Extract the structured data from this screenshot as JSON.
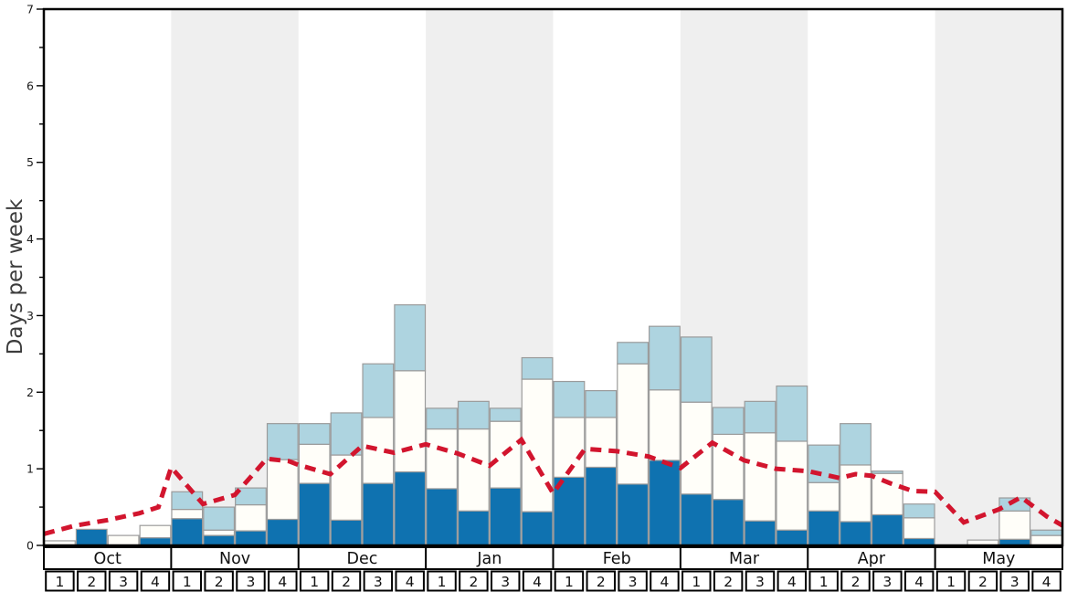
{
  "y_axis": {
    "label": "Days per week",
    "ticks": [
      "0",
      "1",
      "2",
      "3",
      "4",
      "5",
      "6",
      "7"
    ],
    "minor_step": 0.5
  },
  "months": [
    {
      "label": "Oct",
      "weeks": [
        "1",
        "2",
        "3",
        "4"
      ]
    },
    {
      "label": "Nov",
      "weeks": [
        "1",
        "2",
        "3",
        "4"
      ]
    },
    {
      "label": "Dec",
      "weeks": [
        "1",
        "2",
        "3",
        "4"
      ]
    },
    {
      "label": "Jan",
      "weeks": [
        "1",
        "2",
        "3",
        "4"
      ]
    },
    {
      "label": "Feb",
      "weeks": [
        "1",
        "2",
        "3",
        "4"
      ]
    },
    {
      "label": "Mar",
      "weeks": [
        "1",
        "2",
        "3",
        "4"
      ]
    },
    {
      "label": "Apr",
      "weeks": [
        "1",
        "2",
        "3",
        "4"
      ]
    },
    {
      "label": "May",
      "weeks": [
        "1",
        "2",
        "3",
        "4"
      ]
    }
  ],
  "colors": {
    "dark_blue": "#0f72b0",
    "bar_white": "#fffef9",
    "light_blue": "#aed4e0",
    "bar_border": "#9b9b9b",
    "red_line": "#d2152e",
    "band_gray": "#efefef",
    "axis_black": "#000000",
    "label_gray": "#3c3c3c"
  },
  "chart_data": {
    "type": "bar",
    "subtype": "stacked-bars-with-dashed-line",
    "title": "",
    "xlabel": "",
    "ylabel": "Days per week",
    "ylim": [
      0,
      7
    ],
    "grid": false,
    "legend": "none",
    "categories": [
      "Oct",
      "Nov",
      "Dec",
      "Jan",
      "Feb",
      "Mar",
      "Apr",
      "May"
    ],
    "weeks_per_month": 4,
    "alternating_month_bands": [
      1,
      3,
      5,
      7
    ],
    "series_note": "values are cumulative stack tops (days per week) for 32 weeks Oct w1 .. May w4",
    "series": [
      {
        "name": "dark-blue-bottom",
        "color": "#0f72b0",
        "cumulative_top": [
          0.0,
          0.21,
          0.0,
          0.1,
          0.35,
          0.13,
          0.19,
          0.34,
          0.81,
          0.33,
          0.81,
          0.96,
          0.74,
          0.45,
          0.75,
          0.44,
          0.89,
          1.02,
          0.8,
          1.11,
          0.67,
          0.6,
          0.32,
          0.2,
          0.45,
          0.31,
          0.4,
          0.09,
          0.0,
          0.0,
          0.08,
          0.0
        ]
      },
      {
        "name": "white-middle",
        "color": "#fffef9",
        "cumulative_top": [
          0.06,
          0.21,
          0.13,
          0.26,
          0.47,
          0.2,
          0.53,
          1.12,
          1.32,
          1.18,
          1.67,
          2.28,
          1.52,
          1.52,
          1.62,
          2.17,
          1.67,
          1.67,
          2.37,
          2.03,
          1.87,
          1.45,
          1.47,
          1.36,
          0.82,
          1.05,
          0.94,
          0.36,
          0.0,
          0.07,
          0.45,
          0.13
        ]
      },
      {
        "name": "light-blue-top",
        "color": "#aed4e0",
        "cumulative_top": [
          0.06,
          0.21,
          0.13,
          0.26,
          0.7,
          0.5,
          0.75,
          1.59,
          1.59,
          1.73,
          2.37,
          3.14,
          1.79,
          1.88,
          1.79,
          2.45,
          2.14,
          2.02,
          2.65,
          2.86,
          2.72,
          1.8,
          1.88,
          2.08,
          1.31,
          1.59,
          0.97,
          0.54,
          0.0,
          0.07,
          0.62,
          0.2
        ]
      }
    ],
    "red_dashed_line": {
      "name": "red-dashed-trend",
      "color": "#d2152e",
      "points_week_units_vs_value": [
        [
          0.0,
          0.15
        ],
        [
          1.0,
          0.26
        ],
        [
          2.0,
          0.33
        ],
        [
          3.0,
          0.42
        ],
        [
          3.6,
          0.5
        ],
        [
          4.0,
          1.02
        ],
        [
          5.0,
          0.54
        ],
        [
          6.0,
          0.66
        ],
        [
          7.0,
          1.13
        ],
        [
          7.7,
          1.1
        ],
        [
          8.0,
          1.05
        ],
        [
          9.0,
          0.93
        ],
        [
          10.0,
          1.3
        ],
        [
          11.0,
          1.21
        ],
        [
          12.0,
          1.32
        ],
        [
          13.0,
          1.2
        ],
        [
          14.0,
          1.04
        ],
        [
          15.0,
          1.38
        ],
        [
          16.0,
          0.68
        ],
        [
          17.0,
          1.26
        ],
        [
          18.0,
          1.23
        ],
        [
          19.0,
          1.16
        ],
        [
          20.0,
          1.01
        ],
        [
          21.0,
          1.34
        ],
        [
          22.0,
          1.11
        ],
        [
          23.0,
          1.0
        ],
        [
          24.0,
          0.97
        ],
        [
          25.0,
          0.88
        ],
        [
          25.5,
          0.93
        ],
        [
          26.0,
          0.91
        ],
        [
          26.6,
          0.81
        ],
        [
          27.3,
          0.71
        ],
        [
          28.0,
          0.7
        ],
        [
          28.9,
          0.3
        ],
        [
          30.0,
          0.47
        ],
        [
          30.7,
          0.63
        ],
        [
          31.5,
          0.38
        ],
        [
          32.0,
          0.26
        ]
      ]
    }
  }
}
